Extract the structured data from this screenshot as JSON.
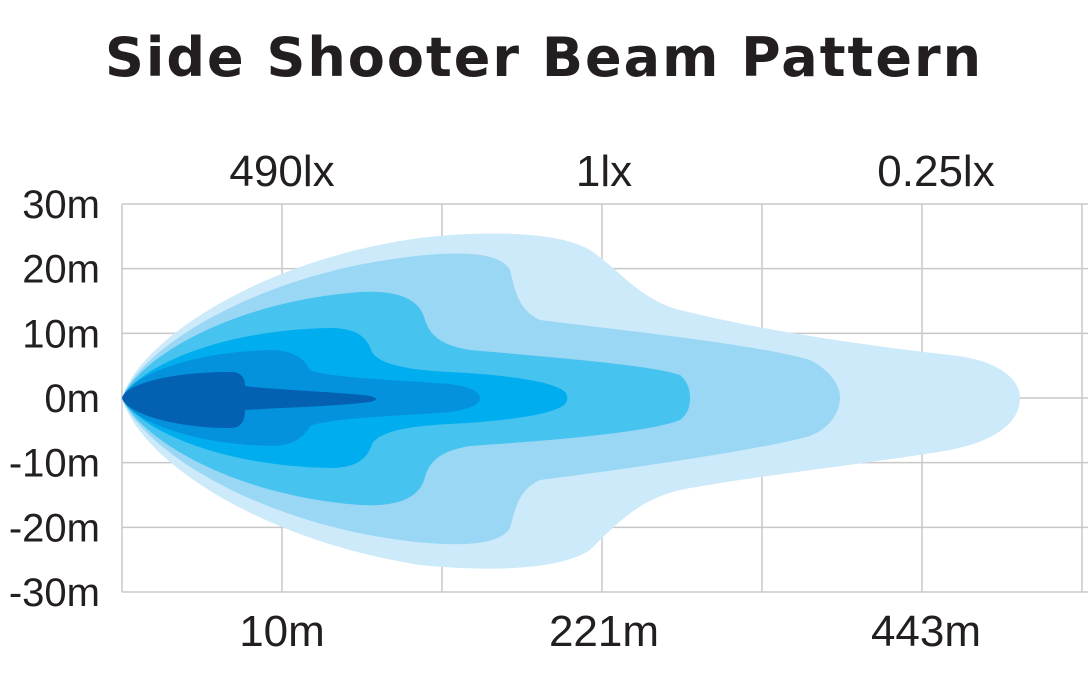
{
  "chart_data": {
    "type": "area",
    "title": "Side Shooter Beam Pattern",
    "y_tick_labels": [
      "30m",
      "20m",
      "10m",
      "0m",
      "-10m",
      "-20m",
      "-30m"
    ],
    "x_tick_labels": [
      "10m",
      "221m",
      "443m"
    ],
    "lux_labels": [
      "490lx",
      "1lx",
      "0.25lx"
    ],
    "ylim": [
      -30,
      30
    ],
    "grid": true,
    "zone_colors": [
      "#cceafa",
      "#99d7f5",
      "#47c3f0",
      "#00aeef",
      "#0592dc",
      "#0461b1"
    ]
  }
}
